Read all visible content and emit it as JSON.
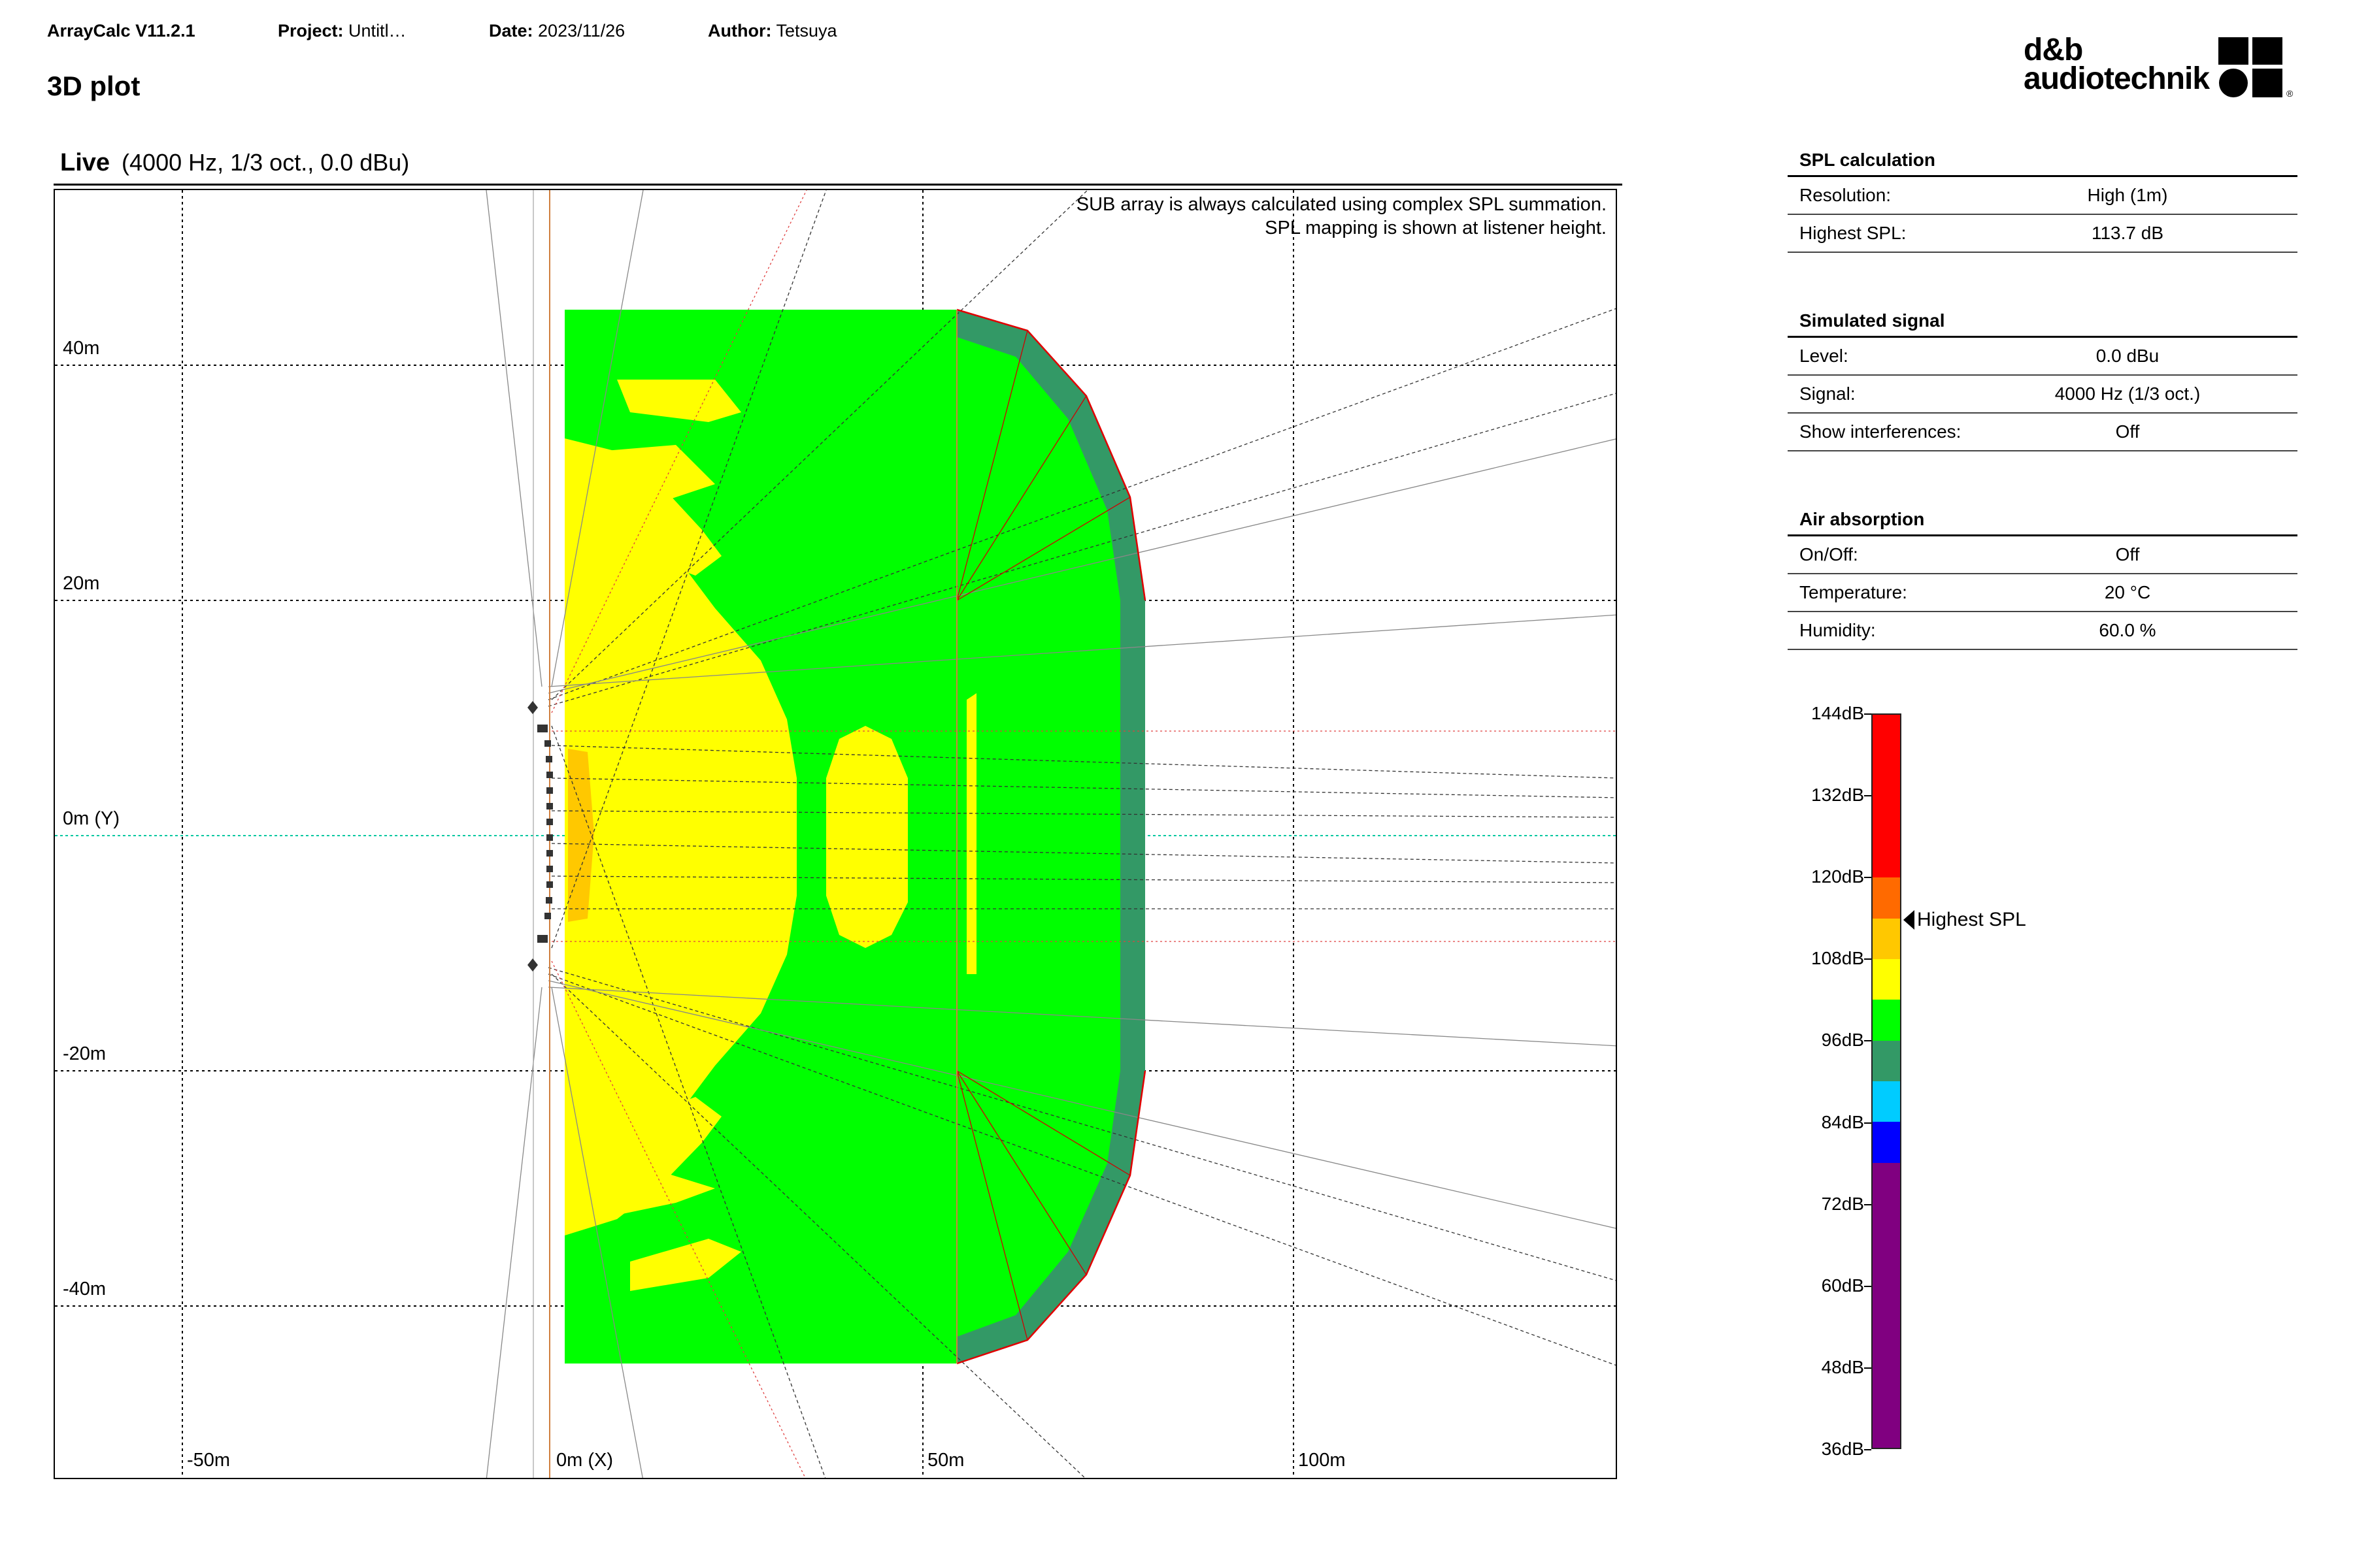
{
  "header": {
    "app_label": "ArrayCalc V11.2.1",
    "project_label": "Project:",
    "project_value": "Untitl…",
    "date_label": "Date:",
    "date_value": "2023/11/26",
    "author_label": "Author:",
    "author_value": "Tetsuya",
    "page_title": "3D plot"
  },
  "logo": {
    "line1": "d&b",
    "line2": "audiotechnik",
    "registered": "®"
  },
  "plot": {
    "mode": "Live",
    "params": "(4000 Hz, 1/3 oct., 0.0 dBu)",
    "note_line1": "SUB array is always calculated using complex SPL summation.",
    "note_line2": "SPL mapping is shown at listener height.",
    "y_labels": [
      "40m",
      "20m",
      "0m (Y)",
      "-20m",
      "-40m"
    ],
    "x_labels": [
      "-50m",
      "0m (X)",
      "50m",
      "100m"
    ]
  },
  "panel": {
    "spl_calculation": {
      "title": "SPL calculation",
      "rows": [
        {
          "label": "Resolution:",
          "value": "High (1m)"
        },
        {
          "label": "Highest SPL:",
          "value": "113.7 dB"
        }
      ]
    },
    "simulated_signal": {
      "title": "Simulated signal",
      "rows": [
        {
          "label": "Level:",
          "value": "0.0 dBu"
        },
        {
          "label": "Signal:",
          "value": "4000 Hz (1/3 oct.)"
        },
        {
          "label": "Show interferences:",
          "value": "Off"
        }
      ]
    },
    "air_absorption": {
      "title": "Air absorption",
      "rows": [
        {
          "label": "On/Off:",
          "value": "Off"
        },
        {
          "label": "Temperature:",
          "value": "20 °C"
        },
        {
          "label": "Humidity:",
          "value": "60.0 %"
        }
      ]
    }
  },
  "spl_scale": {
    "ticks": [
      "144dB",
      "132dB",
      "120dB",
      "108dB",
      "96dB",
      "84dB",
      "72dB",
      "60dB",
      "48dB",
      "36dB"
    ],
    "bands": [
      {
        "from": 144,
        "to": 120,
        "color": "#ff0000"
      },
      {
        "from": 120,
        "to": 114,
        "color": "#ff6a00"
      },
      {
        "from": 114,
        "to": 108,
        "color": "#ffc800"
      },
      {
        "from": 108,
        "to": 102,
        "color": "#ffff00"
      },
      {
        "from": 102,
        "to": 96,
        "color": "#00ff00"
      },
      {
        "from": 96,
        "to": 90,
        "color": "#339966"
      },
      {
        "from": 90,
        "to": 84,
        "color": "#00ccff"
      },
      {
        "from": 84,
        "to": 78,
        "color": "#0000ff"
      },
      {
        "from": 78,
        "to": 36,
        "color": "#800080"
      }
    ],
    "highest_spl_value": 113.7,
    "highest_spl_label": "Highest SPL"
  }
}
